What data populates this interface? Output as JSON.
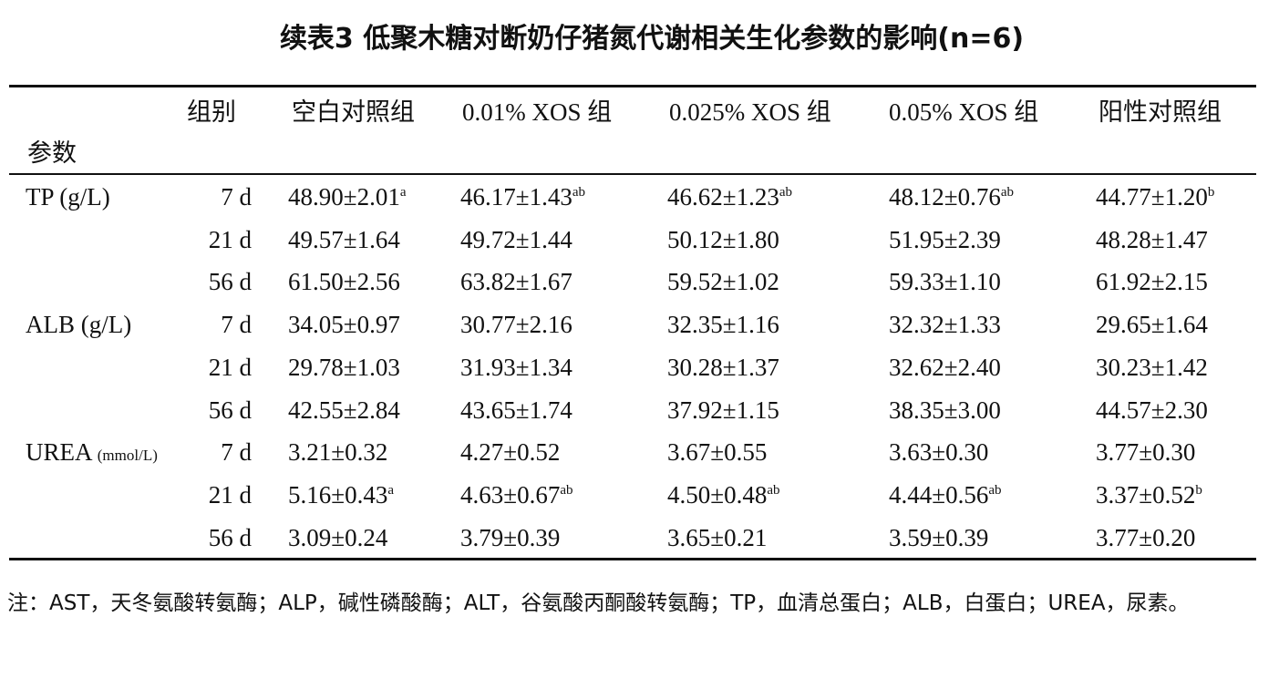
{
  "title": "续表3 低聚木糖对断奶仔猪氮代谢相关生化参数的影响(n=6)",
  "table": {
    "corner_top": "组别",
    "corner_bottom": "参数",
    "columns": [
      "空白对照组",
      "0.01% XOS 组",
      "0.025% XOS 组",
      "0.05% XOS 组",
      "阳性对照组"
    ],
    "groups": [
      {
        "name": "TP",
        "unit": "(g/L)",
        "rows": [
          {
            "time": "7 d",
            "cells": [
              {
                "value": "48.90±2.01",
                "sup": "a"
              },
              {
                "value": "46.17±1.43",
                "sup": "ab"
              },
              {
                "value": "46.62±1.23",
                "sup": "ab"
              },
              {
                "value": "48.12±0.76",
                "sup": "ab"
              },
              {
                "value": "44.77±1.20",
                "sup": "b"
              }
            ]
          },
          {
            "time": "21 d",
            "cells": [
              {
                "value": "49.57±1.64"
              },
              {
                "value": "49.72±1.44"
              },
              {
                "value": "50.12±1.80"
              },
              {
                "value": "51.95±2.39"
              },
              {
                "value": "48.28±1.47"
              }
            ]
          },
          {
            "time": "56 d",
            "cells": [
              {
                "value": "61.50±2.56"
              },
              {
                "value": "63.82±1.67"
              },
              {
                "value": "59.52±1.02"
              },
              {
                "value": "59.33±1.10"
              },
              {
                "value": "61.92±2.15"
              }
            ]
          }
        ]
      },
      {
        "name": "ALB",
        "unit": "(g/L)",
        "rows": [
          {
            "time": "7 d",
            "cells": [
              {
                "value": "34.05±0.97"
              },
              {
                "value": "30.77±2.16"
              },
              {
                "value": "32.35±1.16"
              },
              {
                "value": "32.32±1.33"
              },
              {
                "value": "29.65±1.64"
              }
            ]
          },
          {
            "time": "21 d",
            "cells": [
              {
                "value": "29.78±1.03"
              },
              {
                "value": "31.93±1.34"
              },
              {
                "value": "30.28±1.37"
              },
              {
                "value": "32.62±2.40"
              },
              {
                "value": "30.23±1.42"
              }
            ]
          },
          {
            "time": "56 d",
            "cells": [
              {
                "value": "42.55±2.84"
              },
              {
                "value": "43.65±1.74"
              },
              {
                "value": "37.92±1.15"
              },
              {
                "value": "38.35±3.00"
              },
              {
                "value": "44.57±2.30"
              }
            ]
          }
        ]
      },
      {
        "name": "UREA",
        "unit": "(mmol/L)",
        "rows": [
          {
            "time": "7 d",
            "cells": [
              {
                "value": "3.21±0.32"
              },
              {
                "value": "4.27±0.52"
              },
              {
                "value": "3.67±0.55"
              },
              {
                "value": "3.63±0.30"
              },
              {
                "value": "3.77±0.30"
              }
            ]
          },
          {
            "time": "21 d",
            "cells": [
              {
                "value": "5.16±0.43",
                "sup": "a"
              },
              {
                "value": "4.63±0.67",
                "sup": "ab"
              },
              {
                "value": "4.50±0.48",
                "sup": "ab"
              },
              {
                "value": "4.44±0.56",
                "sup": "ab"
              },
              {
                "value": "3.37±0.52",
                "sup": "b"
              }
            ]
          },
          {
            "time": "56 d",
            "cells": [
              {
                "value": "3.09±0.24"
              },
              {
                "value": "3.79±0.39"
              },
              {
                "value": "3.65±0.21"
              },
              {
                "value": "3.59±0.39"
              },
              {
                "value": "3.77±0.20"
              }
            ]
          }
        ]
      }
    ]
  },
  "note": "注：AST，天冬氨酸转氨酶；ALP，碱性磷酸酶；ALT，谷氨酸丙酮酸转氨酶；TP，血清总蛋白；ALB，白蛋白；UREA，尿素。"
}
